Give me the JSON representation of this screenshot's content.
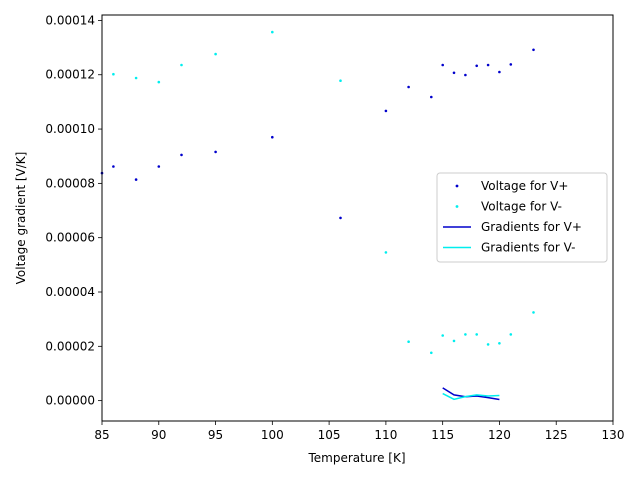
{
  "chart_data": {
    "type": "scatter",
    "xlabel": "Temperature [K]",
    "ylabel": "Voltage gradient [V/K]",
    "xlim": [
      85,
      130
    ],
    "ylim": [
      -7.5e-06,
      0.000142
    ],
    "x_ticks": [
      85,
      90,
      95,
      100,
      105,
      110,
      115,
      120,
      125,
      130
    ],
    "x_tick_labels": [
      "85",
      "90",
      "95",
      "100",
      "105",
      "110",
      "115",
      "120",
      "125",
      "130"
    ],
    "y_ticks": [
      0,
      2e-05,
      4e-05,
      6e-05,
      8e-05,
      0.0001,
      0.00012,
      0.00014
    ],
    "y_tick_labels": [
      "0.00000",
      "0.00002",
      "0.00004",
      "0.00006",
      "0.00008",
      "0.00010",
      "0.00012",
      "0.00014"
    ],
    "grid": false,
    "legend_position": "center-right",
    "series": [
      {
        "name": "Voltage for V+",
        "kind": "scatter",
        "color": "#0000cc",
        "x": [
          85,
          86,
          88,
          90,
          92,
          95,
          100,
          106,
          110,
          112,
          114,
          115,
          116,
          117,
          118,
          119,
          120,
          121,
          123
        ],
        "y": [
          8.38e-05,
          8.62e-05,
          8.14e-05,
          8.62e-05,
          9.05e-05,
          9.16e-05,
          9.7e-05,
          6.73e-05,
          0.0001067,
          0.0001155,
          0.0001118,
          0.0001236,
          0.0001207,
          0.0001199,
          0.0001233,
          0.0001236,
          0.000121,
          0.0001238,
          0.0001292
        ]
      },
      {
        "name": "Voltage for V-",
        "kind": "scatter",
        "color": "#00eeee",
        "x": [
          86,
          88,
          90,
          92,
          95,
          100,
          106,
          110,
          112,
          114,
          115,
          116,
          117,
          118,
          119,
          120,
          121,
          123
        ],
        "y": [
          0.0001202,
          0.0001188,
          0.0001173,
          0.0001236,
          0.0001276,
          0.0001357,
          0.0001178,
          5.46e-05,
          2.17e-05,
          1.76e-05,
          2.4e-05,
          2.2e-05,
          2.44e-05,
          2.44e-05,
          2.07e-05,
          2.11e-05,
          2.44e-05,
          3.25e-05
        ]
      },
      {
        "name": "Gradients for V+",
        "kind": "line",
        "color": "#0000cc",
        "x": [
          115,
          116,
          117,
          118,
          119,
          120
        ],
        "y": [
          4.7e-06,
          2.1e-06,
          1.4e-06,
          1.7e-06,
          1.1e-06,
          4e-07
        ]
      },
      {
        "name": "Gradients for V-",
        "kind": "line",
        "color": "#00eeee",
        "x": [
          115,
          116,
          117,
          118,
          119,
          120
        ],
        "y": [
          2.6e-06,
          5e-07,
          1.5e-06,
          2.1e-06,
          1.7e-06,
          1.9e-06
        ]
      }
    ]
  }
}
